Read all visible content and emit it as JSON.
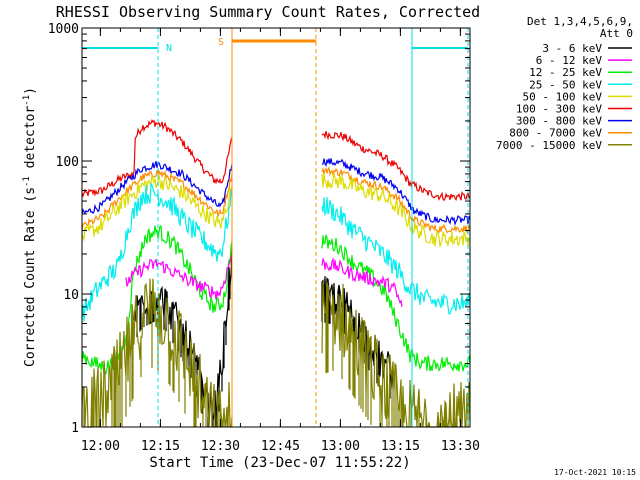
{
  "chart_data": {
    "type": "line",
    "title": "RHESSI Observing Summary Count Rates, Corrected",
    "xlabel": "Start Time (23-Dec-07 11:55:22)",
    "ylabel_main": "Corrected Count Rate (s",
    "ylabel_sup1": "-1",
    "ylabel_mid": " detector",
    "ylabel_sup2": "-1",
    "ylabel_end": ")",
    "footer_date": "17-Oct-2021 10:15",
    "x_scale": "time",
    "x_range_minutes": [
      0,
      97
    ],
    "y_scale": "log",
    "ylim": [
      1,
      1000
    ],
    "grid": false,
    "x_ticks": [
      {
        "label": "12:00",
        "minute": 4.6
      },
      {
        "label": "12:15",
        "minute": 19.6
      },
      {
        "label": "12:30",
        "minute": 34.6
      },
      {
        "label": "12:45",
        "minute": 49.6
      },
      {
        "label": "13:00",
        "minute": 64.6
      },
      {
        "label": "13:15",
        "minute": 79.6
      },
      {
        "label": "13:30",
        "minute": 94.6
      }
    ],
    "y_ticks": [
      {
        "label": "1",
        "value": 1
      },
      {
        "label": "10",
        "value": 10
      },
      {
        "label": "100",
        "value": 100
      },
      {
        "label": "1000",
        "value": 1000
      }
    ],
    "legend": {
      "placement": "right",
      "header": [
        "Det 1,3,4,5,6,9,",
        "Att 0"
      ],
      "entries": [
        {
          "label": "3 - 6 keV",
          "color": "#000000"
        },
        {
          "label": "6 - 12 keV",
          "color": "#ff00ff"
        },
        {
          "label": "12 - 25 keV",
          "color": "#00ee00"
        },
        {
          "label": "25 - 50 keV",
          "color": "#00eeee"
        },
        {
          "label": "50 - 100 keV",
          "color": "#dddd00"
        },
        {
          "label": "100 - 300 keV",
          "color": "#ee0000"
        },
        {
          "label": "300 - 800 keV",
          "color": "#0000ee"
        },
        {
          "label": "800 - 7000 keV",
          "color": "#ff8c00"
        },
        {
          "label": "7000 - 15000 keV",
          "color": "#808000"
        }
      ]
    },
    "annotations": {
      "night": {
        "label": "N",
        "color": "#00e0e0",
        "bars": [
          {
            "from": 0,
            "to": 19
          },
          {
            "from": 82.5,
            "to": 96.5
          }
        ],
        "edges": [
          {
            "minute": 19,
            "style": "dashed"
          },
          {
            "minute": 82.5,
            "style": "solid"
          },
          {
            "minute": 96.5,
            "style": "dashed"
          }
        ]
      },
      "saa": {
        "label": "S",
        "color": "#ff8c00",
        "bar": {
          "from": 37.5,
          "to": 58.5
        },
        "edges": [
          {
            "minute": 37.5,
            "style": "solid"
          },
          {
            "minute": 58.5,
            "style": "dashed"
          }
        ]
      }
    },
    "series": [
      {
        "name": "100 - 300 keV",
        "color": "#ee0000",
        "noise": 0.03,
        "points": [
          [
            0,
            56
          ],
          [
            5,
            60
          ],
          [
            10,
            75
          ],
          [
            13,
            80
          ],
          [
            13.3,
            150
          ],
          [
            15,
            180
          ],
          [
            18,
            195
          ],
          [
            21,
            180
          ],
          [
            25,
            140
          ],
          [
            30,
            90
          ],
          [
            33,
            72
          ],
          [
            35,
            70
          ],
          [
            36,
            90
          ],
          [
            37.5,
            150
          ],
          [
            null,
            null
          ],
          [
            60,
            160
          ],
          [
            65,
            155
          ],
          [
            70,
            125
          ],
          [
            75,
            110
          ],
          [
            79,
            88
          ],
          [
            82,
            68
          ],
          [
            86,
            58
          ],
          [
            90,
            54
          ],
          [
            97,
            54
          ]
        ]
      },
      {
        "name": "300 - 800 keV",
        "color": "#0000ee",
        "noise": 0.03,
        "points": [
          [
            0,
            40
          ],
          [
            5,
            46
          ],
          [
            10,
            65
          ],
          [
            15,
            88
          ],
          [
            19,
            95
          ],
          [
            25,
            80
          ],
          [
            30,
            58
          ],
          [
            34,
            46
          ],
          [
            35,
            45
          ],
          [
            37.5,
            95
          ],
          [
            null,
            null
          ],
          [
            60,
            100
          ],
          [
            65,
            96
          ],
          [
            70,
            82
          ],
          [
            75,
            75
          ],
          [
            79,
            62
          ],
          [
            83,
            42
          ],
          [
            88,
            36
          ],
          [
            97,
            36
          ]
        ]
      },
      {
        "name": "800 - 7000 keV",
        "color": "#ff8c00",
        "noise": 0.03,
        "points": [
          [
            0,
            32
          ],
          [
            5,
            38
          ],
          [
            10,
            55
          ],
          [
            15,
            75
          ],
          [
            19,
            82
          ],
          [
            25,
            68
          ],
          [
            30,
            50
          ],
          [
            34,
            40
          ],
          [
            35,
            40
          ],
          [
            37.5,
            80
          ],
          [
            null,
            null
          ],
          [
            60,
            85
          ],
          [
            65,
            82
          ],
          [
            70,
            70
          ],
          [
            75,
            64
          ],
          [
            79,
            52
          ],
          [
            83,
            36
          ],
          [
            88,
            31
          ],
          [
            97,
            31
          ]
        ]
      },
      {
        "name": "50 - 100 keV",
        "color": "#dddd00",
        "noise": 0.06,
        "points": [
          [
            0,
            27
          ],
          [
            5,
            33
          ],
          [
            10,
            48
          ],
          [
            15,
            65
          ],
          [
            19,
            72
          ],
          [
            25,
            58
          ],
          [
            30,
            42
          ],
          [
            34,
            34
          ],
          [
            35,
            34
          ],
          [
            37.5,
            65
          ],
          [
            null,
            null
          ],
          [
            60,
            72
          ],
          [
            65,
            70
          ],
          [
            70,
            60
          ],
          [
            75,
            55
          ],
          [
            79,
            44
          ],
          [
            83,
            31
          ],
          [
            88,
            26
          ],
          [
            97,
            26
          ]
        ]
      },
      {
        "name": "25 - 50 keV",
        "color": "#00eeee",
        "noise": 0.08,
        "points": [
          [
            0,
            7
          ],
          [
            3,
            10
          ],
          [
            6,
            13
          ],
          [
            9,
            16
          ],
          [
            12,
            35
          ],
          [
            15,
            55
          ],
          [
            18,
            58
          ],
          [
            22,
            48
          ],
          [
            26,
            34
          ],
          [
            30,
            26
          ],
          [
            34,
            20
          ],
          [
            35,
            22
          ],
          [
            37.5,
            55
          ],
          [
            null,
            null
          ],
          [
            60,
            48
          ],
          [
            64,
            40
          ],
          [
            68,
            30
          ],
          [
            72,
            24
          ],
          [
            76,
            19
          ],
          [
            79,
            15
          ],
          [
            82,
            11
          ],
          [
            86,
            9
          ],
          [
            90,
            8.5
          ],
          [
            97,
            8.5
          ]
        ]
      },
      {
        "name": "12 - 25 keV",
        "color": "#00ee00",
        "noise": 0.06,
        "points": [
          [
            0,
            3.5
          ],
          [
            3,
            3
          ],
          [
            6,
            2.8
          ],
          [
            9,
            3.2
          ],
          [
            11,
            4.5
          ],
          [
            13,
            15
          ],
          [
            16,
            27
          ],
          [
            19,
            30
          ],
          [
            23,
            24
          ],
          [
            27,
            15
          ],
          [
            30,
            10
          ],
          [
            33,
            8
          ],
          [
            35,
            8.5
          ],
          [
            36,
            11
          ],
          [
            37.5,
            25
          ],
          [
            null,
            null
          ],
          [
            60,
            25
          ],
          [
            64,
            23
          ],
          [
            68,
            17
          ],
          [
            72,
            14
          ],
          [
            76,
            10
          ],
          [
            78,
            7
          ],
          [
            80,
            5
          ],
          [
            82,
            3.5
          ],
          [
            85,
            3
          ],
          [
            97,
            3
          ]
        ]
      },
      {
        "name": "6 - 12 keV",
        "color": "#ff00ff",
        "noise": 0.05,
        "points": [
          [
            11,
            12
          ],
          [
            13,
            14
          ],
          [
            16,
            16
          ],
          [
            19,
            17
          ],
          [
            24,
            14
          ],
          [
            28,
            12
          ],
          [
            31,
            11
          ],
          [
            34,
            10
          ],
          [
            35,
            11
          ],
          [
            37.5,
            20
          ],
          [
            null,
            null
          ],
          [
            60,
            17
          ],
          [
            64,
            16
          ],
          [
            68,
            14
          ],
          [
            72,
            13
          ],
          [
            76,
            12
          ],
          [
            78,
            11
          ],
          [
            80,
            8
          ]
        ]
      },
      {
        "name": "3 - 6 keV",
        "color": "#000000",
        "noise": 0.14,
        "points": [
          [
            13,
            7
          ],
          [
            15,
            9
          ],
          [
            18,
            10
          ],
          [
            21,
            8.5
          ],
          [
            24,
            6
          ],
          [
            27,
            4
          ],
          [
            29,
            2.6
          ],
          [
            31,
            1.6
          ],
          [
            32.5,
            1.3
          ],
          [
            33.5,
            1.5
          ],
          [
            35,
            3
          ],
          [
            36.5,
            10
          ],
          [
            37.5,
            22
          ],
          [
            null,
            null
          ],
          [
            60,
            10
          ],
          [
            63,
            9.5
          ],
          [
            66,
            8
          ],
          [
            69,
            6
          ],
          [
            72,
            4.2
          ],
          [
            75,
            3
          ],
          [
            78,
            2.5
          ]
        ]
      },
      {
        "name": "7000 - 15000 keV",
        "color": "#808000",
        "noise": 0.3,
        "points": [
          [
            0,
            1.3
          ],
          [
            3,
            1.4
          ],
          [
            6,
            1.7
          ],
          [
            9,
            2.4
          ],
          [
            12,
            4
          ],
          [
            15,
            7
          ],
          [
            18,
            8
          ],
          [
            21,
            6.5
          ],
          [
            24,
            4.5
          ],
          [
            27,
            3
          ],
          [
            29,
            2
          ],
          [
            31,
            1.4
          ],
          [
            33,
            1.1
          ],
          [
            35,
            1.05
          ],
          [
            37.5,
            1.2
          ],
          [
            null,
            null
          ],
          [
            60,
            7
          ],
          [
            63,
            7.5
          ],
          [
            66,
            6
          ],
          [
            69,
            4.2
          ],
          [
            72,
            3
          ],
          [
            75,
            2.2
          ],
          [
            78,
            1.6
          ],
          [
            81,
            1.2
          ],
          [
            85,
            1.1
          ],
          [
            97,
            1.1
          ]
        ]
      }
    ]
  }
}
